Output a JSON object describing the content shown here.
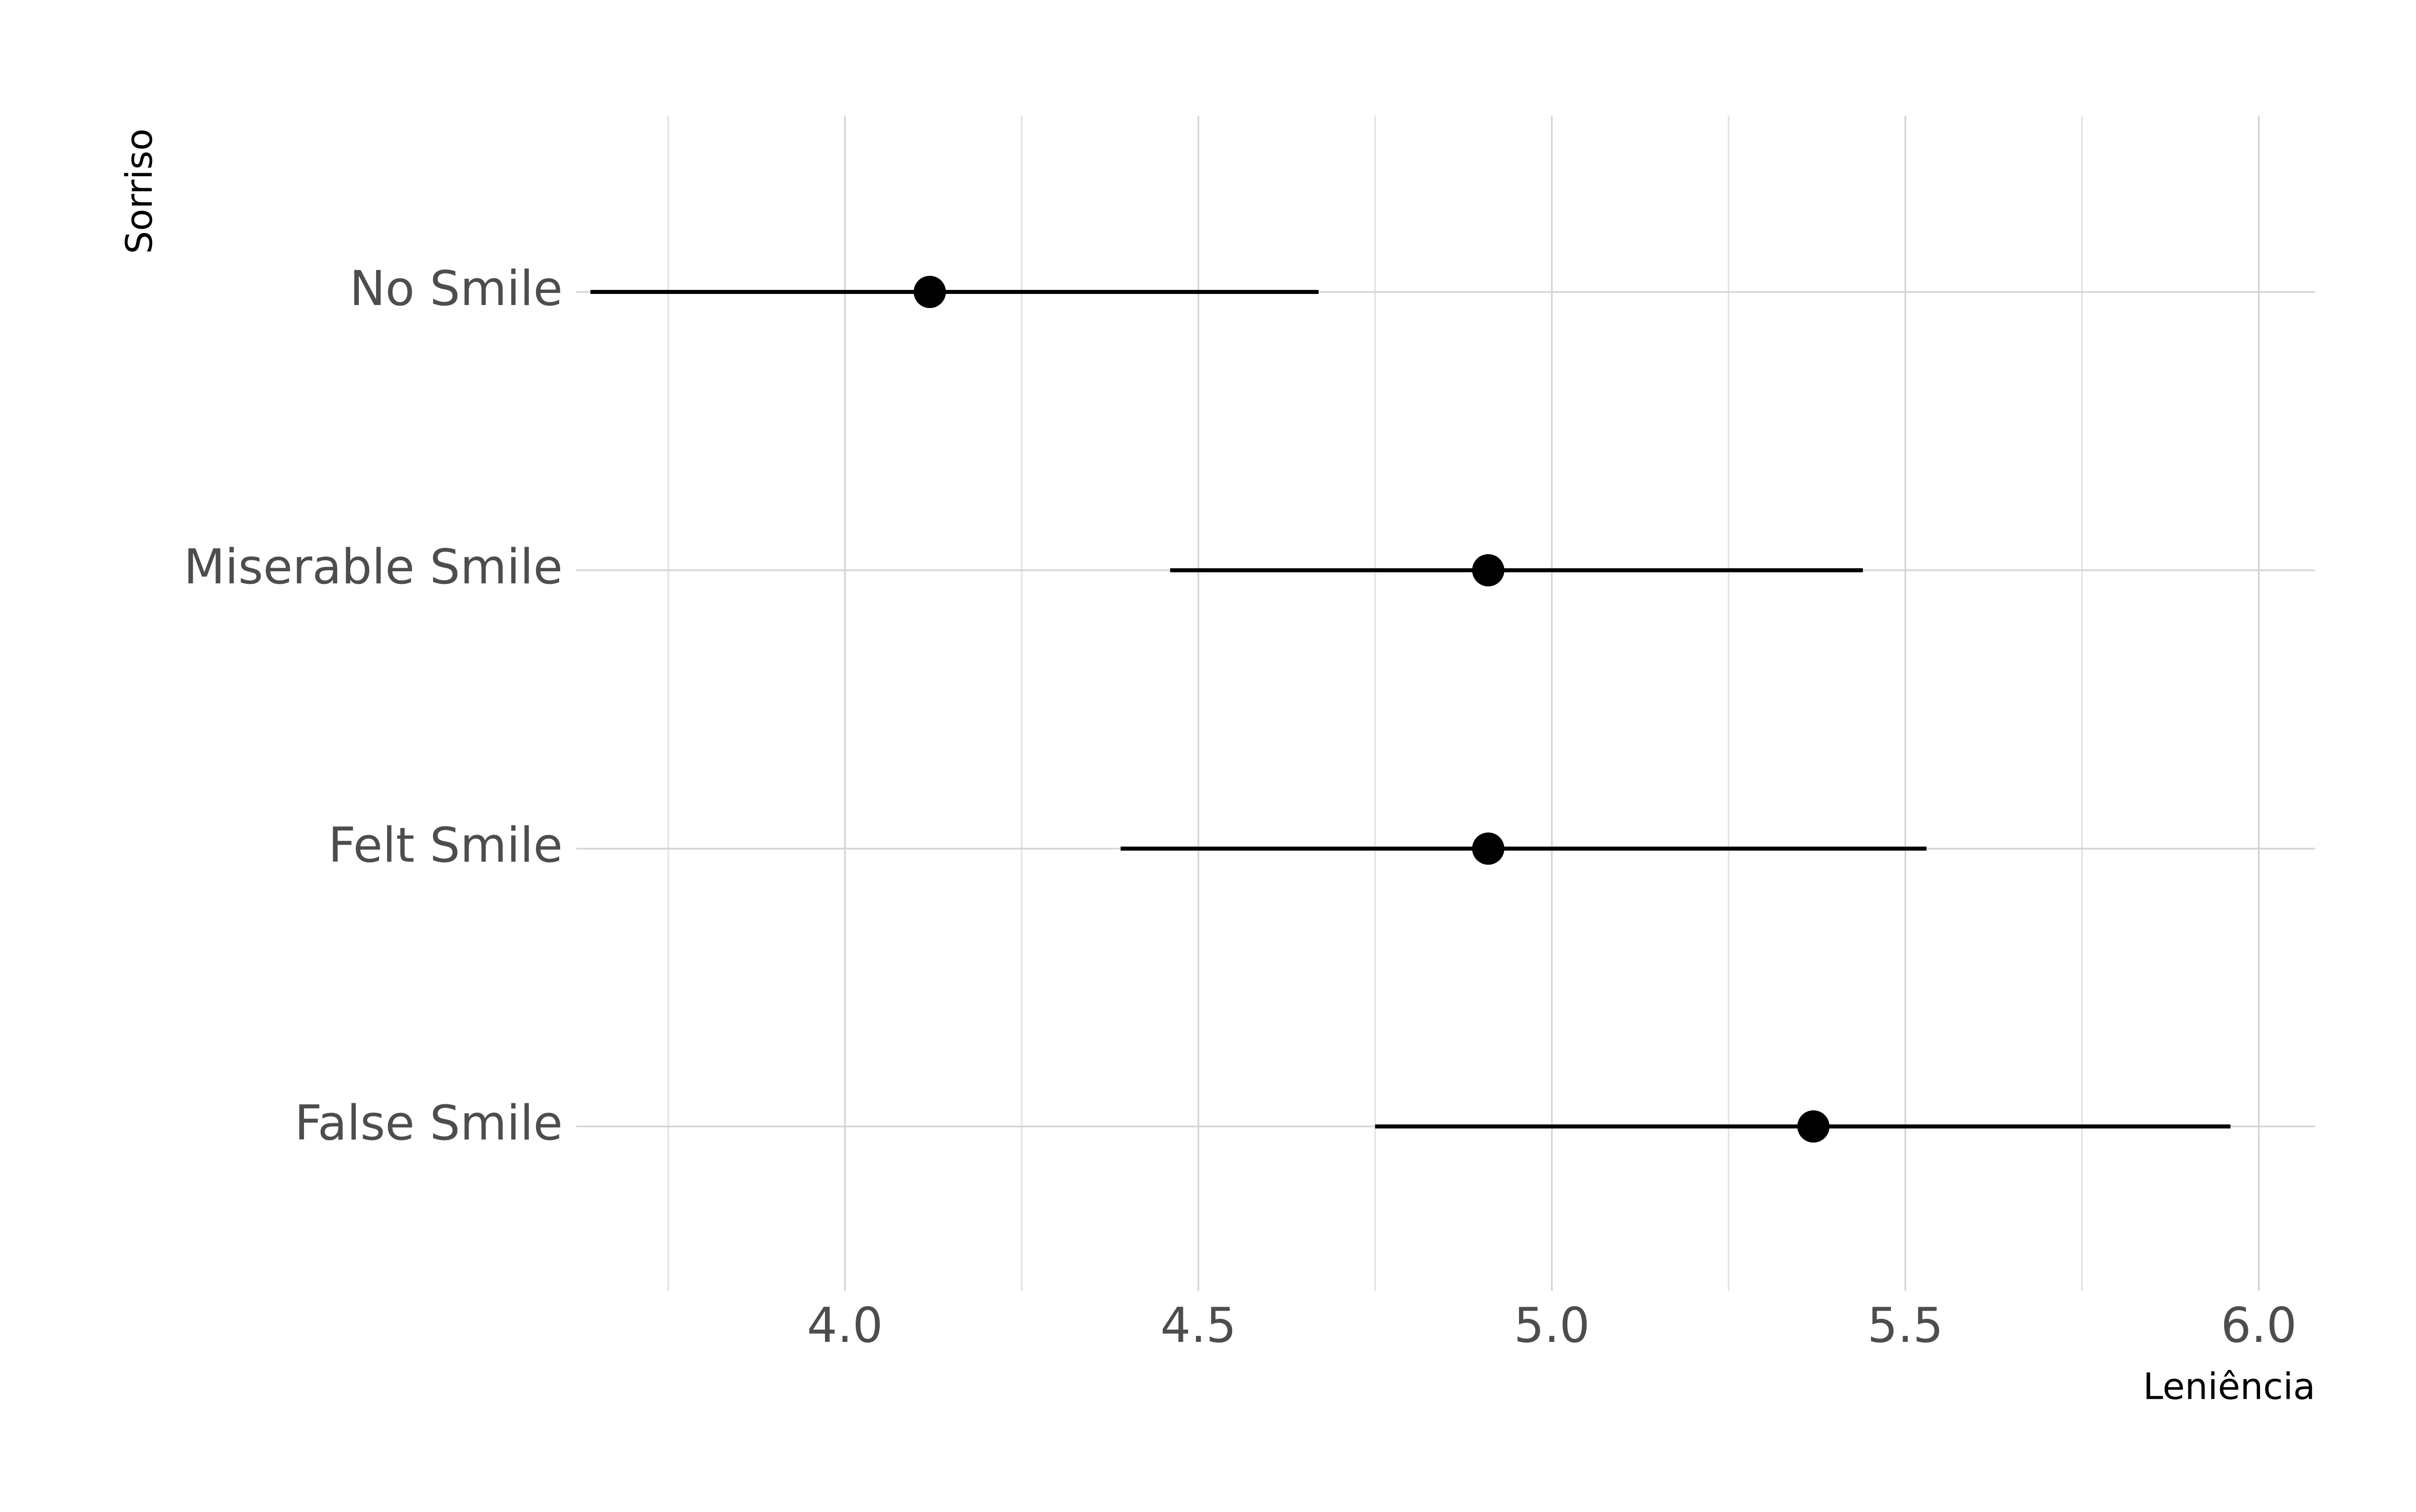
{
  "chart_data": {
    "type": "pointrange",
    "xlabel": "Leniência",
    "ylabel": "Sorriso",
    "xlim": [
      3.62,
      6.08
    ],
    "x_ticks": [
      4.0,
      4.5,
      5.0,
      5.5,
      6.0
    ],
    "x_tick_labels": [
      "4.0",
      "4.5",
      "5.0",
      "5.5",
      "6.0"
    ],
    "x_minor_ticks": [
      3.75,
      4.25,
      4.75,
      5.25,
      5.75
    ],
    "grid": true,
    "legend": "none",
    "colors": {
      "marker": "#000000",
      "grid": "#d3d3d3",
      "tick_text": "#4d4d4d"
    },
    "categories": [
      "No Smile",
      "Miserable Smile",
      "Felt Smile",
      "False Smile"
    ],
    "points": [
      {
        "category": "No Smile",
        "estimate": 4.12,
        "lower": 3.64,
        "upper": 4.67
      },
      {
        "category": "Miserable Smile",
        "estimate": 4.91,
        "lower": 4.46,
        "upper": 5.44
      },
      {
        "category": "Felt Smile",
        "estimate": 4.91,
        "lower": 4.39,
        "upper": 5.53
      },
      {
        "category": "False Smile",
        "estimate": 5.37,
        "lower": 4.75,
        "upper": 5.96
      }
    ]
  }
}
